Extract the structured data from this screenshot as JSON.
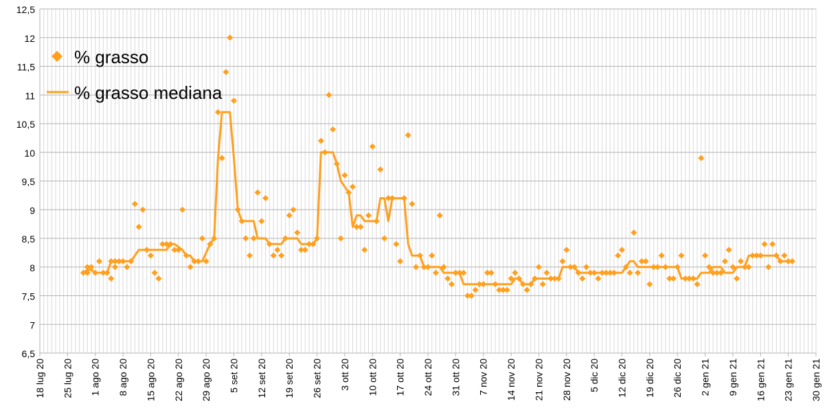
{
  "chart_data": {
    "type": "scatter",
    "title": "",
    "xlabel": "",
    "ylabel": "",
    "x_axis": {
      "min": "2020-07-18",
      "max": "2021-01-30",
      "tick_interval_days": 7,
      "tick_labels": [
        "18 lug 20",
        "25 lug 20",
        "1 ago 20",
        "8 ago 20",
        "15 ago 20",
        "22 ago 20",
        "29 ago 20",
        "5 set 20",
        "12 set 20",
        "19 set 20",
        "26 set 20",
        "3 ott 20",
        "10 ott 20",
        "17 ott 20",
        "24 ott 20",
        "31 ott 20",
        "7 nov 20",
        "14 nov 20",
        "21 nov 20",
        "28 nov 20",
        "5 dic 20",
        "12 dic 20",
        "19 dic 20",
        "26 dic 20",
        "2 gen 21",
        "9 gen 21",
        "16 gen 21",
        "23 gen 21",
        "30 gen 21"
      ]
    },
    "y_axis": {
      "min": 6.5,
      "max": 12.5,
      "step": 0.5,
      "tick_labels": [
        "6,5",
        "7",
        "7,5",
        "8",
        "8,5",
        "9",
        "9,5",
        "10",
        "10,5",
        "11",
        "11,5",
        "12",
        "12,5"
      ]
    },
    "grid": true,
    "legend_position": "top-left",
    "series": [
      {
        "name": "% grasso",
        "kind": "points",
        "marker": "diamond",
        "color": "#ff9f1e",
        "points": [
          [
            "2020-07-29",
            7.9
          ],
          [
            "2020-07-30",
            8.0
          ],
          [
            "2020-07-30",
            7.9
          ],
          [
            "2020-07-31",
            8.0
          ],
          [
            "2020-08-01",
            7.9
          ],
          [
            "2020-08-02",
            8.1
          ],
          [
            "2020-08-03",
            7.9
          ],
          [
            "2020-08-04",
            7.9
          ],
          [
            "2020-08-05",
            7.8
          ],
          [
            "2020-08-05",
            8.1
          ],
          [
            "2020-08-06",
            8.0
          ],
          [
            "2020-08-06",
            8.1
          ],
          [
            "2020-08-07",
            8.1
          ],
          [
            "2020-08-08",
            8.1
          ],
          [
            "2020-08-09",
            8.0
          ],
          [
            "2020-08-10",
            8.1
          ],
          [
            "2020-08-11",
            9.1
          ],
          [
            "2020-08-12",
            8.7
          ],
          [
            "2020-08-13",
            9.0
          ],
          [
            "2020-08-14",
            8.3
          ],
          [
            "2020-08-15",
            8.2
          ],
          [
            "2020-08-16",
            7.9
          ],
          [
            "2020-08-17",
            7.8
          ],
          [
            "2020-08-18",
            8.4
          ],
          [
            "2020-08-19",
            8.4
          ],
          [
            "2020-08-20",
            8.4
          ],
          [
            "2020-08-21",
            8.3
          ],
          [
            "2020-08-22",
            8.3
          ],
          [
            "2020-08-23",
            9.0
          ],
          [
            "2020-08-24",
            8.2
          ],
          [
            "2020-08-25",
            8.0
          ],
          [
            "2020-08-26",
            8.1
          ],
          [
            "2020-08-27",
            8.1
          ],
          [
            "2020-08-28",
            8.5
          ],
          [
            "2020-08-29",
            8.1
          ],
          [
            "2020-08-30",
            8.4
          ],
          [
            "2020-08-31",
            8.5
          ],
          [
            "2020-09-01",
            10.7
          ],
          [
            "2020-09-02",
            9.9
          ],
          [
            "2020-09-03",
            11.4
          ],
          [
            "2020-09-04",
            12.0
          ],
          [
            "2020-09-05",
            10.9
          ],
          [
            "2020-09-06",
            9.0
          ],
          [
            "2020-09-07",
            8.8
          ],
          [
            "2020-09-08",
            8.5
          ],
          [
            "2020-09-09",
            8.2
          ],
          [
            "2020-09-10",
            8.5
          ],
          [
            "2020-09-11",
            9.3
          ],
          [
            "2020-09-12",
            8.8
          ],
          [
            "2020-09-13",
            9.2
          ],
          [
            "2020-09-14",
            8.4
          ],
          [
            "2020-09-15",
            8.2
          ],
          [
            "2020-09-16",
            8.3
          ],
          [
            "2020-09-17",
            8.2
          ],
          [
            "2020-09-18",
            8.5
          ],
          [
            "2020-09-19",
            8.9
          ],
          [
            "2020-09-20",
            9.0
          ],
          [
            "2020-09-21",
            8.6
          ],
          [
            "2020-09-22",
            8.3
          ],
          [
            "2020-09-23",
            8.3
          ],
          [
            "2020-09-24",
            8.4
          ],
          [
            "2020-09-25",
            8.4
          ],
          [
            "2020-09-26",
            8.5
          ],
          [
            "2020-09-27",
            10.2
          ],
          [
            "2020-09-28",
            10.0
          ],
          [
            "2020-09-29",
            11.0
          ],
          [
            "2020-09-30",
            10.4
          ],
          [
            "2020-10-01",
            9.8
          ],
          [
            "2020-10-02",
            8.5
          ],
          [
            "2020-10-03",
            9.6
          ],
          [
            "2020-10-04",
            9.3
          ],
          [
            "2020-10-05",
            9.4
          ],
          [
            "2020-10-06",
            8.7
          ],
          [
            "2020-10-07",
            8.7
          ],
          [
            "2020-10-08",
            8.3
          ],
          [
            "2020-10-09",
            8.9
          ],
          [
            "2020-10-10",
            10.1
          ],
          [
            "2020-10-11",
            8.8
          ],
          [
            "2020-10-12",
            9.7
          ],
          [
            "2020-10-13",
            8.5
          ],
          [
            "2020-10-14",
            9.2
          ],
          [
            "2020-10-15",
            9.2
          ],
          [
            "2020-10-16",
            8.4
          ],
          [
            "2020-10-17",
            8.1
          ],
          [
            "2020-10-18",
            9.2
          ],
          [
            "2020-10-19",
            10.3
          ],
          [
            "2020-10-20",
            9.1
          ],
          [
            "2020-10-21",
            8.0
          ],
          [
            "2020-10-22",
            8.2
          ],
          [
            "2020-10-23",
            8.0
          ],
          [
            "2020-10-24",
            8.0
          ],
          [
            "2020-10-25",
            8.2
          ],
          [
            "2020-10-26",
            7.9
          ],
          [
            "2020-10-27",
            8.9
          ],
          [
            "2020-10-28",
            8.0
          ],
          [
            "2020-10-29",
            7.8
          ],
          [
            "2020-10-30",
            7.7
          ],
          [
            "2020-10-31",
            7.9
          ],
          [
            "2020-11-01",
            7.9
          ],
          [
            "2020-11-02",
            7.9
          ],
          [
            "2020-11-03",
            7.5
          ],
          [
            "2020-11-04",
            7.5
          ],
          [
            "2020-11-05",
            7.6
          ],
          [
            "2020-11-06",
            7.7
          ],
          [
            "2020-11-07",
            7.7
          ],
          [
            "2020-11-08",
            7.9
          ],
          [
            "2020-11-09",
            7.9
          ],
          [
            "2020-11-10",
            7.7
          ],
          [
            "2020-11-11",
            7.6
          ],
          [
            "2020-11-12",
            7.6
          ],
          [
            "2020-11-13",
            7.6
          ],
          [
            "2020-11-14",
            7.8
          ],
          [
            "2020-11-15",
            7.9
          ],
          [
            "2020-11-16",
            7.8
          ],
          [
            "2020-11-17",
            7.7
          ],
          [
            "2020-11-18",
            7.6
          ],
          [
            "2020-11-19",
            7.7
          ],
          [
            "2020-11-20",
            7.8
          ],
          [
            "2020-11-21",
            8.0
          ],
          [
            "2020-11-22",
            7.7
          ],
          [
            "2020-11-23",
            7.9
          ],
          [
            "2020-11-24",
            7.8
          ],
          [
            "2020-11-25",
            7.8
          ],
          [
            "2020-11-26",
            7.8
          ],
          [
            "2020-11-27",
            8.1
          ],
          [
            "2020-11-28",
            8.3
          ],
          [
            "2020-11-29",
            8.0
          ],
          [
            "2020-11-30",
            8.0
          ],
          [
            "2020-12-01",
            7.9
          ],
          [
            "2020-12-02",
            7.8
          ],
          [
            "2020-12-03",
            8.0
          ],
          [
            "2020-12-04",
            7.9
          ],
          [
            "2020-12-05",
            7.9
          ],
          [
            "2020-12-06",
            7.8
          ],
          [
            "2020-12-07",
            7.9
          ],
          [
            "2020-12-08",
            7.9
          ],
          [
            "2020-12-09",
            7.9
          ],
          [
            "2020-12-10",
            7.9
          ],
          [
            "2020-12-11",
            8.2
          ],
          [
            "2020-12-12",
            8.3
          ],
          [
            "2020-12-13",
            8.0
          ],
          [
            "2020-12-14",
            7.9
          ],
          [
            "2020-12-15",
            8.6
          ],
          [
            "2020-12-16",
            7.9
          ],
          [
            "2020-12-17",
            8.1
          ],
          [
            "2020-12-18",
            8.1
          ],
          [
            "2020-12-19",
            7.7
          ],
          [
            "2020-12-20",
            8.0
          ],
          [
            "2020-12-21",
            8.0
          ],
          [
            "2020-12-22",
            8.2
          ],
          [
            "2020-12-23",
            8.0
          ],
          [
            "2020-12-24",
            7.8
          ],
          [
            "2020-12-25",
            7.8
          ],
          [
            "2020-12-26",
            8.0
          ],
          [
            "2020-12-27",
            8.2
          ],
          [
            "2020-12-28",
            7.8
          ],
          [
            "2020-12-29",
            7.8
          ],
          [
            "2020-12-30",
            7.8
          ],
          [
            "2020-12-31",
            7.7
          ],
          [
            "2021-01-01",
            9.9
          ],
          [
            "2021-01-02",
            8.2
          ],
          [
            "2021-01-03",
            8.0
          ],
          [
            "2021-01-04",
            7.9
          ],
          [
            "2021-01-05",
            7.9
          ],
          [
            "2021-01-06",
            7.9
          ],
          [
            "2021-01-07",
            8.1
          ],
          [
            "2021-01-08",
            8.3
          ],
          [
            "2021-01-09",
            8.0
          ],
          [
            "2021-01-10",
            7.8
          ],
          [
            "2021-01-11",
            8.1
          ],
          [
            "2021-01-12",
            8.0
          ],
          [
            "2021-01-13",
            8.0
          ],
          [
            "2021-01-14",
            8.2
          ],
          [
            "2021-01-15",
            8.2
          ],
          [
            "2021-01-16",
            8.2
          ],
          [
            "2021-01-17",
            8.4
          ],
          [
            "2021-01-18",
            8.0
          ],
          [
            "2021-01-19",
            8.4
          ],
          [
            "2021-01-20",
            8.2
          ],
          [
            "2021-01-21",
            8.1
          ],
          [
            "2021-01-22",
            8.2
          ],
          [
            "2021-01-23",
            8.1
          ],
          [
            "2021-01-24",
            8.1
          ]
        ]
      },
      {
        "name": "% grasso mediana",
        "kind": "line",
        "color": "#ff9f1e",
        "points": [
          [
            "2020-07-29",
            7.9
          ],
          [
            "2020-07-30",
            7.95
          ],
          [
            "2020-07-31",
            7.95
          ],
          [
            "2020-08-01",
            7.9
          ],
          [
            "2020-08-03",
            7.9
          ],
          [
            "2020-08-04",
            7.9
          ],
          [
            "2020-08-05",
            8.1
          ],
          [
            "2020-08-06",
            8.1
          ],
          [
            "2020-08-07",
            8.1
          ],
          [
            "2020-08-10",
            8.1
          ],
          [
            "2020-08-12",
            8.3
          ],
          [
            "2020-08-17",
            8.3
          ],
          [
            "2020-08-19",
            8.3
          ],
          [
            "2020-08-20",
            8.4
          ],
          [
            "2020-08-21",
            8.4
          ],
          [
            "2020-08-23",
            8.3
          ],
          [
            "2020-08-24",
            8.2
          ],
          [
            "2020-08-25",
            8.2
          ],
          [
            "2020-08-26",
            8.1
          ],
          [
            "2020-08-28",
            8.1
          ],
          [
            "2020-08-30",
            8.4
          ],
          [
            "2020-08-31",
            8.5
          ],
          [
            "2020-09-01",
            9.9
          ],
          [
            "2020-09-02",
            10.7
          ],
          [
            "2020-09-04",
            10.7
          ],
          [
            "2020-09-05",
            9.9
          ],
          [
            "2020-09-06",
            9.0
          ],
          [
            "2020-09-07",
            8.8
          ],
          [
            "2020-09-10",
            8.8
          ],
          [
            "2020-09-11",
            8.5
          ],
          [
            "2020-09-13",
            8.5
          ],
          [
            "2020-09-14",
            8.4
          ],
          [
            "2020-09-17",
            8.4
          ],
          [
            "2020-09-18",
            8.5
          ],
          [
            "2020-09-21",
            8.5
          ],
          [
            "2020-09-22",
            8.4
          ],
          [
            "2020-09-25",
            8.4
          ],
          [
            "2020-09-26",
            8.5
          ],
          [
            "2020-09-27",
            10.0
          ],
          [
            "2020-09-30",
            10.0
          ],
          [
            "2020-10-01",
            9.8
          ],
          [
            "2020-10-02",
            9.5
          ],
          [
            "2020-10-03",
            9.4
          ],
          [
            "2020-10-04",
            9.3
          ],
          [
            "2020-10-05",
            8.7
          ],
          [
            "2020-10-06",
            8.9
          ],
          [
            "2020-10-07",
            8.9
          ],
          [
            "2020-10-08",
            8.8
          ],
          [
            "2020-10-11",
            8.8
          ],
          [
            "2020-10-12",
            9.2
          ],
          [
            "2020-10-13",
            9.2
          ],
          [
            "2020-10-14",
            8.8
          ],
          [
            "2020-10-15",
            9.2
          ],
          [
            "2020-10-18",
            9.2
          ],
          [
            "2020-10-19",
            8.4
          ],
          [
            "2020-10-20",
            8.2
          ],
          [
            "2020-10-22",
            8.2
          ],
          [
            "2020-10-23",
            8.0
          ],
          [
            "2020-10-27",
            8.0
          ],
          [
            "2020-10-28",
            7.9
          ],
          [
            "2020-11-01",
            7.9
          ],
          [
            "2020-11-02",
            7.7
          ],
          [
            "2020-11-14",
            7.7
          ],
          [
            "2020-11-15",
            7.8
          ],
          [
            "2020-11-16",
            7.8
          ],
          [
            "2020-11-17",
            7.7
          ],
          [
            "2020-11-19",
            7.7
          ],
          [
            "2020-11-20",
            7.8
          ],
          [
            "2020-11-26",
            7.8
          ],
          [
            "2020-11-27",
            8.0
          ],
          [
            "2020-11-30",
            8.0
          ],
          [
            "2020-12-01",
            7.9
          ],
          [
            "2020-12-12",
            7.9
          ],
          [
            "2020-12-13",
            8.0
          ],
          [
            "2020-12-14",
            8.1
          ],
          [
            "2020-12-15",
            8.1
          ],
          [
            "2020-12-16",
            8.0
          ],
          [
            "2020-12-26",
            8.0
          ],
          [
            "2020-12-27",
            7.8
          ],
          [
            "2020-12-31",
            7.8
          ],
          [
            "2021-01-01",
            7.9
          ],
          [
            "2021-01-03",
            7.9
          ],
          [
            "2021-01-04",
            8.0
          ],
          [
            "2021-01-06",
            8.0
          ],
          [
            "2021-01-07",
            7.9
          ],
          [
            "2021-01-09",
            7.9
          ],
          [
            "2021-01-10",
            8.0
          ],
          [
            "2021-01-12",
            8.0
          ],
          [
            "2021-01-13",
            8.2
          ],
          [
            "2021-01-20",
            8.2
          ],
          [
            "2021-01-21",
            8.1
          ],
          [
            "2021-01-24",
            8.1
          ]
        ]
      }
    ]
  }
}
